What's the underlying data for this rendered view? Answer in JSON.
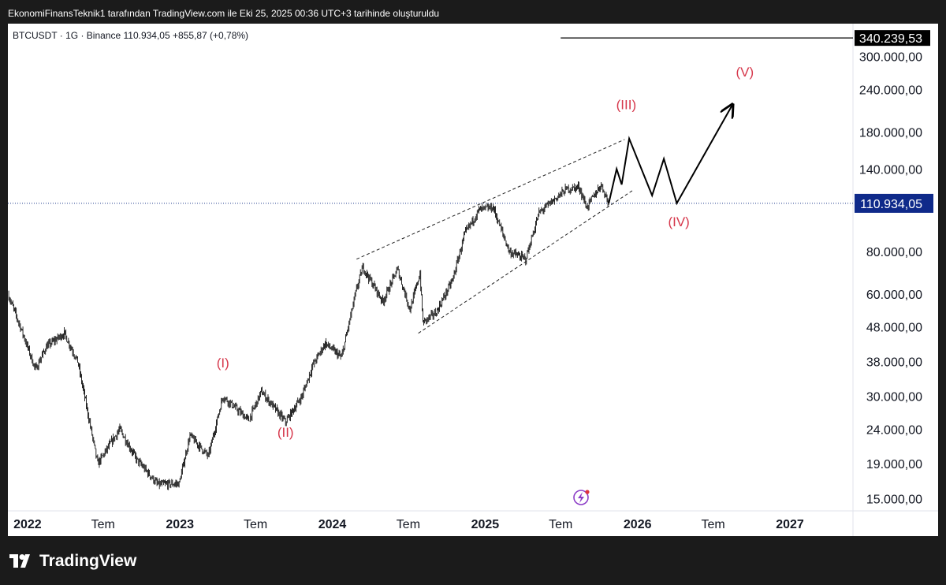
{
  "header": {
    "attribution": "EkonomiFinansTeknik1 tarafından TradingView.com ile Eki 25, 2025 00:36 UTC+3 tarihinde oluşturuldu"
  },
  "symbol_info": {
    "symbol": "BTCUSDT",
    "interval": "1G",
    "exchange": "Binance",
    "last_price": "110.934,05",
    "change": "+855,87 (+0,78%)"
  },
  "footer": {
    "brand": "TradingView",
    "logo_icon": "tradingview-logo-icon"
  },
  "colors": {
    "candles": "#111111",
    "wave_labels": "#d6374b",
    "price_badge": "#0f2a8a",
    "target_badge": "#000000",
    "background": "#ffffff",
    "frame": "#1b1b1b"
  },
  "chart_data": {
    "type": "candlestick",
    "scale": "log",
    "currency_label": "USDT",
    "y_ticks": [
      "300.000,00",
      "240.000,00",
      "180.000,00",
      "140.000,00",
      "80.000,00",
      "60.000,00",
      "48.000,00",
      "38.000,00",
      "30.000,00",
      "24.000,00",
      "19.000,00",
      "15.000,00"
    ],
    "y_tick_values": [
      300000,
      240000,
      180000,
      140000,
      80000,
      60000,
      48000,
      38000,
      30000,
      24000,
      19000,
      15000
    ],
    "y_range": [
      13800,
      365000
    ],
    "x_range": [
      "2021-11-15",
      "2027-06-01"
    ],
    "x_ticks": [
      {
        "date": "2022-01-01",
        "label": "2022",
        "major": true
      },
      {
        "date": "2022-07-01",
        "label": "Tem",
        "major": false
      },
      {
        "date": "2023-01-01",
        "label": "2023",
        "major": true
      },
      {
        "date": "2023-07-01",
        "label": "Tem",
        "major": false
      },
      {
        "date": "2024-01-01",
        "label": "2024",
        "major": true
      },
      {
        "date": "2024-07-01",
        "label": "Tem",
        "major": false
      },
      {
        "date": "2025-01-01",
        "label": "2025",
        "major": true
      },
      {
        "date": "2025-07-01",
        "label": "Tem",
        "major": false
      },
      {
        "date": "2026-01-01",
        "label": "2026",
        "major": true
      },
      {
        "date": "2026-07-01",
        "label": "Tem",
        "major": false
      },
      {
        "date": "2027-01-01",
        "label": "2027",
        "major": true
      }
    ],
    "current_price": {
      "value": 110934.05,
      "label": "110.934,05"
    },
    "target_line": {
      "value": 340239.53,
      "label": "340.239,53",
      "start": "2025-07-01"
    },
    "price_path": [
      [
        "2021-11-15",
        60000
      ],
      [
        "2021-12-15",
        48000
      ],
      [
        "2022-01-20",
        36000
      ],
      [
        "2022-02-15",
        42000
      ],
      [
        "2022-03-30",
        46000
      ],
      [
        "2022-05-01",
        38000
      ],
      [
        "2022-05-20",
        29000
      ],
      [
        "2022-06-18",
        19000
      ],
      [
        "2022-08-10",
        24000
      ],
      [
        "2022-09-20",
        19500
      ],
      [
        "2022-11-09",
        16500
      ],
      [
        "2022-12-30",
        16600
      ],
      [
        "2023-01-25",
        23000
      ],
      [
        "2023-03-10",
        20000
      ],
      [
        "2023-04-14",
        30000
      ],
      [
        "2023-06-15",
        25500
      ],
      [
        "2023-07-15",
        31000
      ],
      [
        "2023-09-11",
        25200
      ],
      [
        "2023-10-20",
        30000
      ],
      [
        "2023-11-15",
        37000
      ],
      [
        "2023-12-15",
        43000
      ],
      [
        "2024-01-23",
        39000
      ],
      [
        "2024-02-28",
        62000
      ],
      [
        "2024-03-14",
        72000
      ],
      [
        "2024-05-01",
        57000
      ],
      [
        "2024-06-05",
        71000
      ],
      [
        "2024-07-05",
        54000
      ],
      [
        "2024-07-29",
        69000
      ],
      [
        "2024-08-05",
        49500
      ],
      [
        "2024-09-06",
        53000
      ],
      [
        "2024-10-15",
        66000
      ],
      [
        "2024-11-13",
        90000
      ],
      [
        "2024-12-17",
        106000
      ],
      [
        "2025-01-20",
        108000
      ],
      [
        "2025-02-28",
        80000
      ],
      [
        "2025-04-08",
        76000
      ],
      [
        "2025-05-10",
        104000
      ],
      [
        "2025-07-14",
        122000
      ],
      [
        "2025-08-14",
        124000
      ],
      [
        "2025-09-01",
        108000
      ],
      [
        "2025-10-06",
        126000
      ],
      [
        "2025-10-24",
        110934
      ]
    ],
    "projection": [
      [
        "2025-10-24",
        110934
      ],
      [
        "2025-11-12",
        140000
      ],
      [
        "2025-11-24",
        126000
      ],
      [
        "2025-12-12",
        172000
      ],
      [
        "2026-02-05",
        117000
      ],
      [
        "2026-03-05",
        150000
      ],
      [
        "2026-04-05",
        111000
      ],
      [
        "2026-08-15",
        215000
      ]
    ],
    "channel": {
      "upper": [
        [
          "2024-02-28",
          76000
        ],
        [
          "2025-12-01",
          171000
        ]
      ],
      "lower": [
        [
          "2024-07-25",
          46000
        ],
        [
          "2025-12-20",
          121000
        ]
      ]
    },
    "wave_labels": [
      {
        "label": "(I)",
        "date": "2023-04-14",
        "value": 36500
      },
      {
        "label": "(II)",
        "date": "2023-09-11",
        "value": 22800
      },
      {
        "label": "(III)",
        "date": "2025-12-05",
        "value": 210000
      },
      {
        "label": "(IV)",
        "date": "2026-04-10",
        "value": 95000
      },
      {
        "label": "(V)",
        "date": "2026-09-15",
        "value": 262000
      }
    ]
  }
}
